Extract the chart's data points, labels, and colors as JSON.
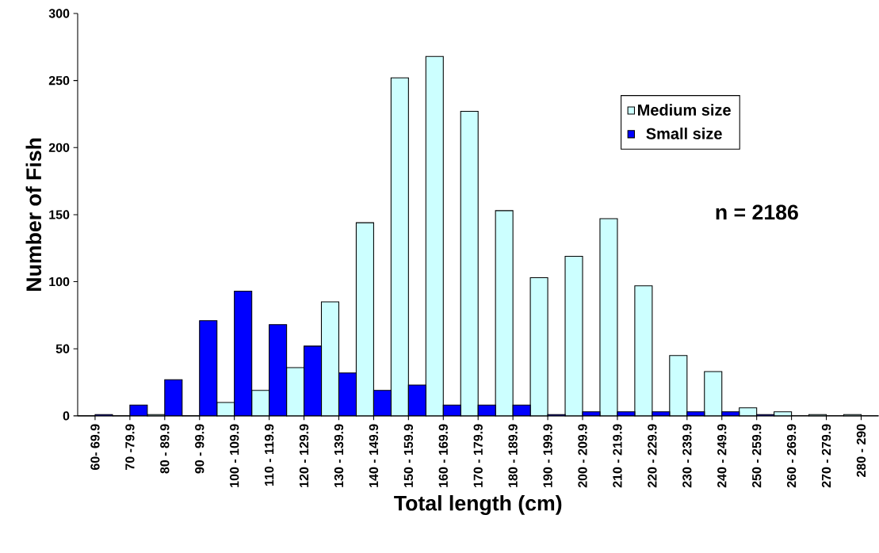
{
  "chart_data": {
    "type": "bar",
    "xlabel": "Total length (cm)",
    "ylabel": "Number of Fish",
    "categories": [
      "60- 69.9",
      "70 -79.9",
      "80 - 89.9",
      "90 - 99.9",
      "100 - 109.9",
      "110 - 119.9",
      "120 - 129.9",
      "130 - 139.9",
      "140 - 149.9",
      "150 - 159.9",
      "160 - 169.9",
      "170 - 179.9",
      "180 - 189.9",
      "190 - 199.9",
      "200 - 209.9",
      "210 - 219.9",
      "220 - 229.9",
      "230 - 239.9",
      "240 - 249.9",
      "250 - 259.9",
      "260 - 269.9",
      "270 - 279.9",
      "280 - 290"
    ],
    "series": [
      {
        "name": "Medium size",
        "color": "#ccffff",
        "values": [
          0,
          0,
          1,
          0,
          10,
          19,
          36,
          85,
          144,
          252,
          268,
          227,
          153,
          103,
          119,
          147,
          97,
          45,
          33,
          6,
          3,
          1,
          1
        ]
      },
      {
        "name": "Small size",
        "color": "#0000ff",
        "values": [
          1,
          8,
          27,
          71,
          93,
          68,
          52,
          32,
          19,
          23,
          8,
          8,
          8,
          1,
          3,
          3,
          3,
          3,
          3,
          1,
          0,
          0,
          0
        ]
      }
    ],
    "ylim": [
      0,
      300
    ],
    "yticks": [
      0,
      50,
      100,
      150,
      200,
      250,
      300
    ],
    "annotations": [
      "n = 2186"
    ],
    "legend": "top right",
    "grid": false
  }
}
